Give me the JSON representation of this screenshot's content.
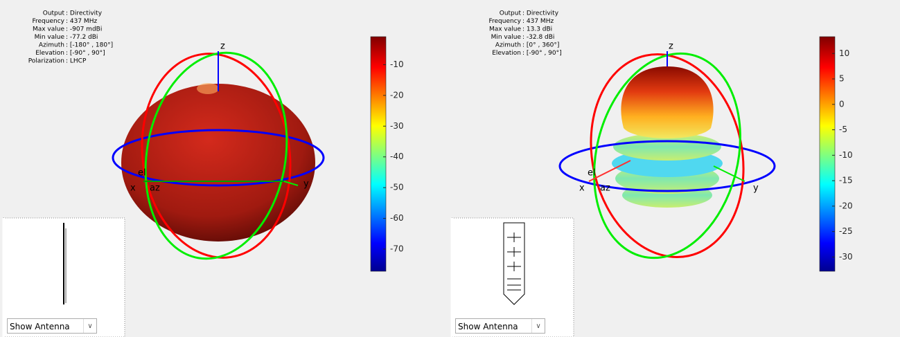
{
  "panels": [
    {
      "info": [
        {
          "label": "Output",
          "value": ": Directivity"
        },
        {
          "label": "Frequency",
          "value": ": 437 MHz"
        },
        {
          "label": "Max value",
          "value": ": -907 mdBi"
        },
        {
          "label": "Min value",
          "value": ": -77.2 dBi"
        },
        {
          "label": "Azimuth",
          "value": ": [-180° , 180°]"
        },
        {
          "label": "Elevation",
          "value": ": [-90° , 90°]"
        },
        {
          "label": "Polarization",
          "value": ": LHCP"
        }
      ],
      "colorbar": {
        "lim": [
          -77.2,
          -0.907
        ],
        "ticks": [
          -10,
          -20,
          -30,
          -40,
          -50,
          -60,
          -70
        ]
      },
      "axes": {
        "z": "z",
        "x": "x",
        "y": "y",
        "az": "az",
        "el": "el"
      },
      "dropdown": "Show Antenna"
    },
    {
      "info": [
        {
          "label": "Output",
          "value": ": Directivity"
        },
        {
          "label": "Frequency",
          "value": ": 437 MHz"
        },
        {
          "label": "Max value",
          "value": ": 13.3 dBi"
        },
        {
          "label": "Min value",
          "value": ": -32.8 dBi"
        },
        {
          "label": "Azimuth",
          "value": ": [0° , 360°]"
        },
        {
          "label": "Elevation",
          "value": ": [-90° , 90°]"
        }
      ],
      "colorbar": {
        "lim": [
          -32.8,
          13.3
        ],
        "ticks": [
          10,
          5,
          0,
          -5,
          -10,
          -15,
          -20,
          -25,
          -30
        ]
      },
      "axes": {
        "z": "z",
        "x": "x",
        "y": "y",
        "az": "az",
        "el": "el"
      },
      "dropdown": "Show Antenna"
    }
  ]
}
